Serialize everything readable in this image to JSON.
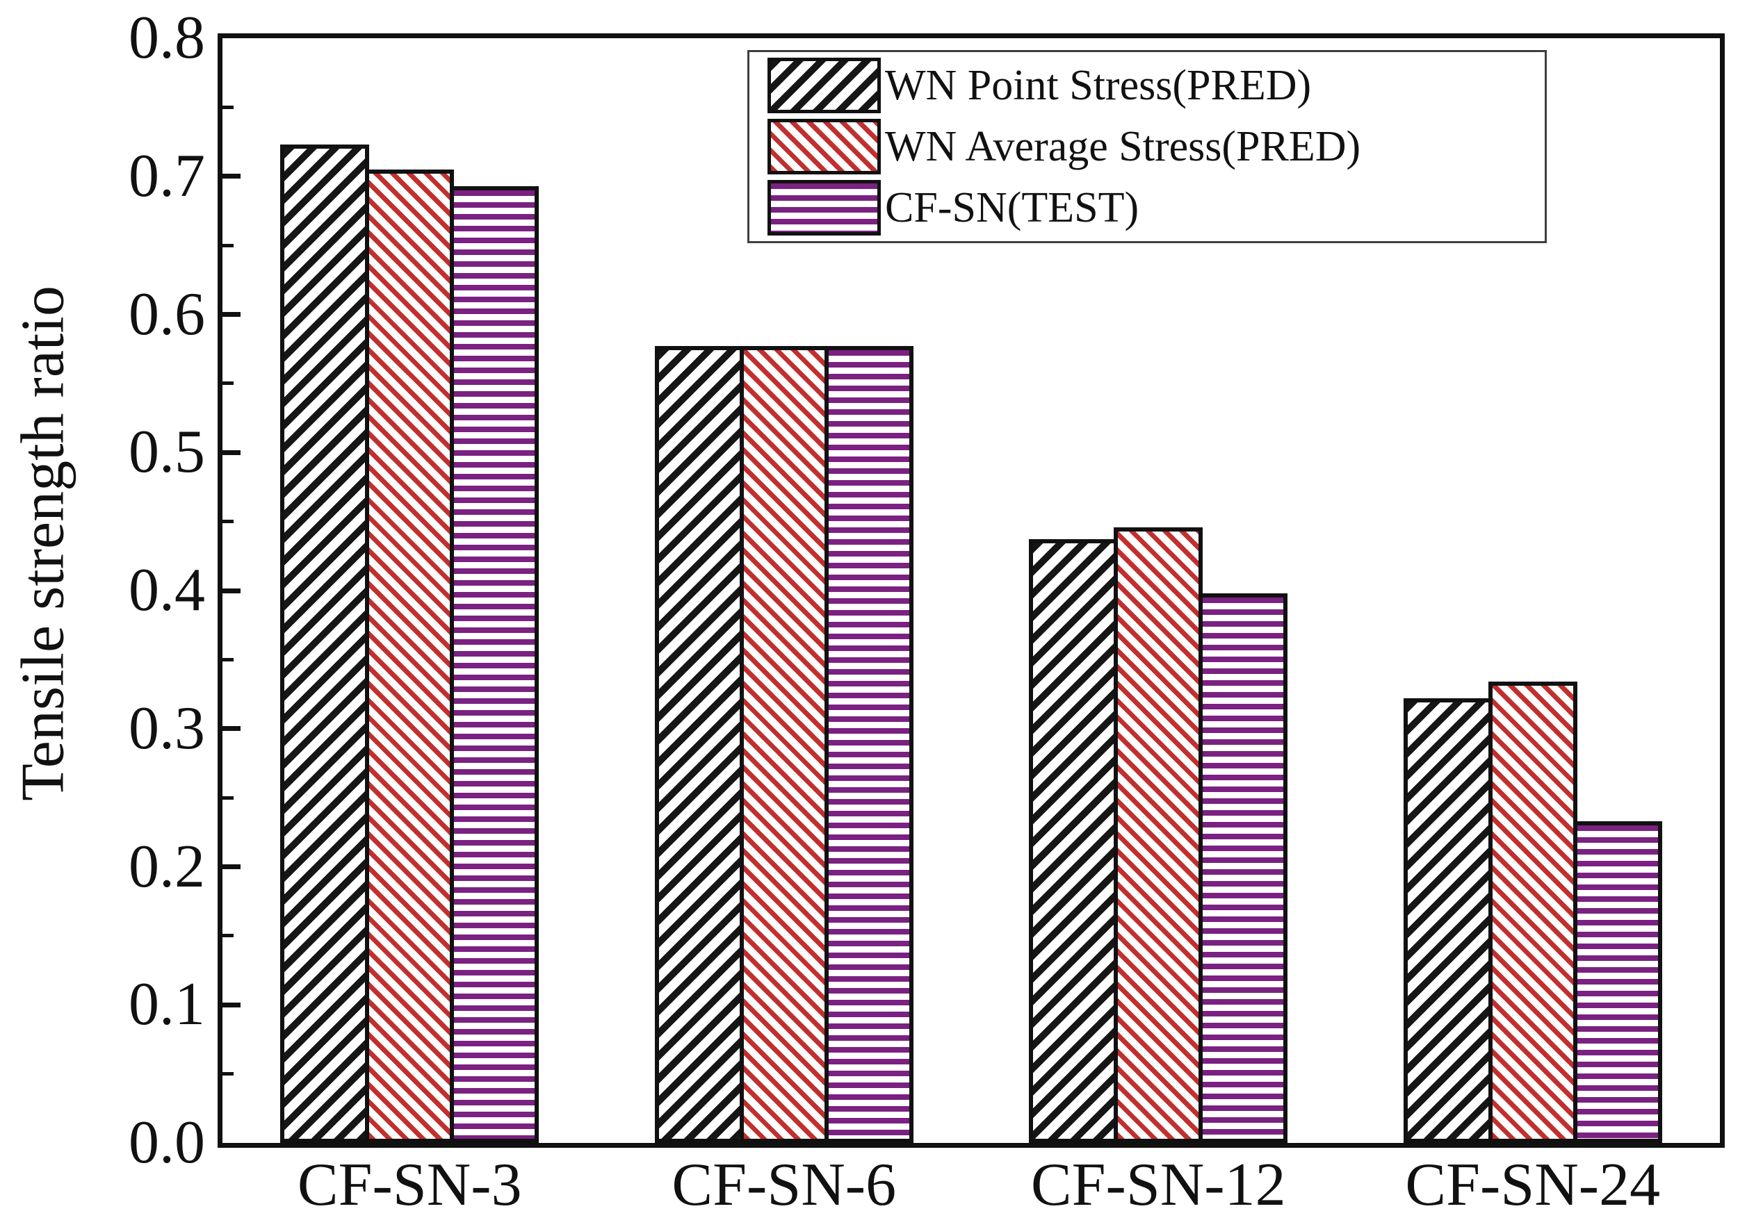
{
  "figure": {
    "background": "#ffffff",
    "frame_color": "#111111",
    "text_color": "#111111"
  },
  "chart_data": {
    "type": "bar",
    "title": "",
    "xlabel": "",
    "ylabel": "Tensile strength ratio",
    "categories": [
      "CF-SN-3",
      "CF-SN-6",
      "CF-SN-12",
      "CF-SN-24"
    ],
    "series": [
      {
        "name": "WN Point Stress(PRED)",
        "pattern": "diagonal-up",
        "color": "#161616",
        "values": [
          0.723,
          0.577,
          0.437,
          0.322
        ]
      },
      {
        "name": "WN Average Stress(PRED)",
        "pattern": "diagonal-down",
        "color": "#c22f2f",
        "values": [
          0.705,
          0.577,
          0.446,
          0.334
        ]
      },
      {
        "name": "CF-SN(TEST)",
        "pattern": "horizontal",
        "color": "#7a2181",
        "values": [
          0.693,
          0.577,
          0.398,
          0.233
        ]
      }
    ],
    "ylim": [
      0.0,
      0.8
    ],
    "ytick_step": 0.1,
    "minor_tick_step": 0.05,
    "ytick_decimals": 1,
    "grid": false,
    "legend_position": "top-center",
    "legend_border_color": "#3f3f3f"
  }
}
